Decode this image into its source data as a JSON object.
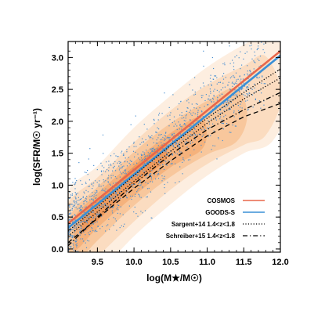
{
  "chart_data": {
    "type": "scatter",
    "xlabel": "log(M★/M☉)",
    "ylabel": "log(SFR/M☉ yr⁻¹)",
    "xlim": [
      9.1,
      12.0
    ],
    "ylim": [
      -0.05,
      3.25
    ],
    "x_ticks": [
      "9.5",
      "10.0",
      "10.5",
      "11.0",
      "11.5",
      "12.0"
    ],
    "y_ticks": [
      "0.0",
      "0.5",
      "1.0",
      "1.5",
      "2.0",
      "2.5",
      "3.0"
    ],
    "legend_position": "bottom-right",
    "colors": {
      "cosmos": "#e8674a",
      "goods": "#3a8fd6",
      "density": [
        "#fdeee0",
        "#fbdcc0",
        "#f8c79c",
        "#f5b27c",
        "#f09a5c"
      ],
      "points": "#4a8fd0"
    },
    "density_levels": [
      {
        "ridge": [
          [
            9.1,
            0.05
          ],
          [
            9.5,
            0.45
          ],
          [
            10.0,
            1.05
          ],
          [
            10.5,
            1.55
          ],
          [
            11.0,
            2.0
          ],
          [
            11.5,
            2.35
          ],
          [
            11.9,
            2.55
          ]
        ],
        "halfwidth": 0.85
      },
      {
        "ridge": [
          [
            9.1,
            0.1
          ],
          [
            9.5,
            0.5
          ],
          [
            10.0,
            1.05
          ],
          [
            10.5,
            1.55
          ],
          [
            11.0,
            1.95
          ],
          [
            11.5,
            2.25
          ],
          [
            11.8,
            2.4
          ]
        ],
        "halfwidth": 0.62
      },
      {
        "ridge": [
          [
            9.15,
            0.15
          ],
          [
            9.5,
            0.55
          ],
          [
            10.0,
            1.1
          ],
          [
            10.5,
            1.55
          ],
          [
            11.0,
            1.9
          ],
          [
            11.4,
            2.1
          ]
        ],
        "halfwidth": 0.42
      },
      {
        "ridge": [
          [
            9.2,
            0.25
          ],
          [
            9.5,
            0.6
          ],
          [
            10.0,
            1.1
          ],
          [
            10.5,
            1.55
          ],
          [
            10.9,
            1.8
          ]
        ],
        "halfwidth": 0.27
      },
      {
        "ridge": [
          [
            9.3,
            0.4
          ],
          [
            9.6,
            0.7
          ],
          [
            10.0,
            1.15
          ],
          [
            10.4,
            1.5
          ]
        ],
        "halfwidth": 0.15
      }
    ],
    "series": [
      {
        "name": "COSMOS",
        "style": "solid",
        "color": "#e8674a",
        "x": [
          9.1,
          12.0
        ],
        "y": [
          0.4,
          3.1
        ]
      },
      {
        "name": "GOODS-S",
        "style": "solid",
        "color": "#3a8fd6",
        "x": [
          9.1,
          12.0
        ],
        "y": [
          0.33,
          3.03
        ]
      },
      {
        "name": "Sargent+14 1.4<z<1.8",
        "style": "dotted",
        "color": "#000000",
        "x": [
          9.1,
          9.5,
          10.0,
          10.5,
          11.0,
          11.5,
          12.0
        ],
        "y": [
          0.28,
          0.66,
          1.15,
          1.62,
          2.05,
          2.45,
          2.82
        ]
      },
      {
        "name": "Sargent+14 1.4<z<1.8 (lower)",
        "style": "dotted",
        "color": "#000000",
        "x": [
          9.1,
          9.5,
          10.0,
          10.5,
          11.0,
          11.5,
          12.0
        ],
        "y": [
          0.2,
          0.58,
          1.06,
          1.53,
          1.97,
          2.35,
          2.68
        ]
      },
      {
        "name": "Schreiber+15 1.4<z<1.8",
        "style": "dashdot",
        "color": "#000000",
        "x": [
          9.1,
          9.5,
          10.0,
          10.5,
          11.0,
          11.5,
          12.0
        ],
        "y": [
          0.05,
          0.5,
          1.02,
          1.48,
          1.87,
          2.18,
          2.45
        ]
      },
      {
        "name": "Schreiber+15 1.4<z<1.8 (lower)",
        "style": "dashed",
        "color": "#000000",
        "x": [
          9.1,
          9.5,
          10.0,
          10.5,
          11.0,
          11.5,
          12.0
        ],
        "y": [
          0.1,
          0.48,
          0.95,
          1.38,
          1.77,
          2.07,
          2.28
        ]
      }
    ],
    "legend": [
      {
        "label": "COSMOS",
        "style": "solid",
        "color": "#e8674a"
      },
      {
        "label": "GOODS-S",
        "style": "solid",
        "color": "#3a8fd6"
      },
      {
        "label": "Sargent+14 1.4<z<1.8",
        "style": "dotted",
        "color": "#000000"
      },
      {
        "label": "Schreiber+15 1.4<z<1.8",
        "style": "dashdot",
        "color": "#000000"
      }
    ],
    "scatter_points": {
      "count": 1400,
      "seed": 7,
      "x_range": [
        9.1,
        11.8
      ],
      "relation": {
        "slope": 0.93,
        "intercept_at_9_1": 0.35,
        "scatter": 0.3
      }
    }
  }
}
